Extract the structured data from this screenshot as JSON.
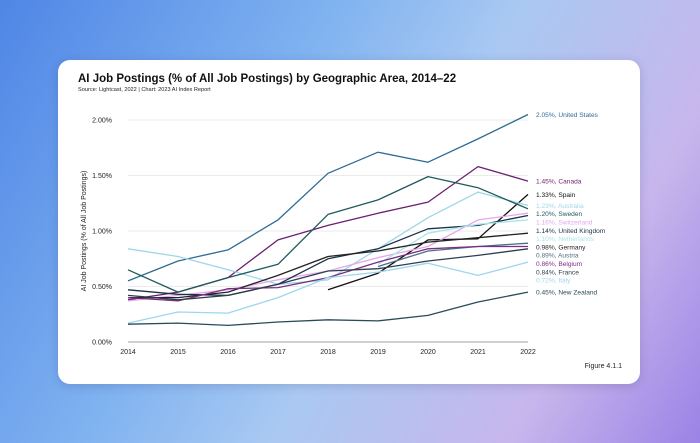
{
  "header": {
    "title": "AI Job Postings (% of All Job Postings) by Geographic Area, 2014–22",
    "subtitle": "Source: Lightcast, 2022 | Chart: 2023 AI Index Report",
    "figure": "Figure 4.1.1"
  },
  "chart_data": {
    "type": "line",
    "title": "AI Job Postings (% of All Job Postings) by Geographic Area, 2014–22",
    "ylabel": "AI Job Postings (% of All Job Postings)",
    "xlabel": "",
    "x": [
      2014,
      2015,
      2016,
      2017,
      2018,
      2019,
      2020,
      2021,
      2022
    ],
    "ylim": [
      0,
      2.0
    ],
    "yticks": [
      "0.00%",
      "0.50%",
      "1.00%",
      "1.50%",
      "2.00%"
    ],
    "grid": true,
    "series": [
      {
        "name": "United States",
        "label": "2.05%, United States",
        "color": "#2e6b96",
        "values": [
          0.55,
          0.73,
          0.83,
          1.1,
          1.52,
          1.71,
          1.62,
          1.83,
          2.05
        ]
      },
      {
        "name": "Canada",
        "label": "1.45%, Canada",
        "color": "#6b1f6e",
        "values": [
          0.38,
          0.45,
          0.58,
          0.92,
          1.05,
          1.16,
          1.26,
          1.58,
          1.45
        ]
      },
      {
        "name": "Spain",
        "label": "1.33%, Spain",
        "color": "#111111",
        "values": [
          null,
          null,
          null,
          null,
          0.47,
          0.62,
          0.92,
          0.93,
          1.33
        ]
      },
      {
        "name": "Australia",
        "label": "1.23%, Australia",
        "color": "#9fd6e6",
        "values": [
          0.84,
          0.77,
          0.65,
          0.52,
          0.56,
          0.84,
          1.12,
          1.35,
          1.23
        ]
      },
      {
        "name": "Sweden",
        "label": "1.20%, Sweden",
        "color": "#1f5a5e",
        "values": [
          0.65,
          0.45,
          0.58,
          0.7,
          1.15,
          1.28,
          1.49,
          1.39,
          1.2
        ]
      },
      {
        "name": "Switzerland",
        "label": "1.16%, Switzerland",
        "color": "#e6a6ee",
        "values": [
          0.37,
          0.42,
          0.47,
          0.56,
          0.64,
          0.76,
          0.86,
          1.1,
          1.16
        ]
      },
      {
        "name": "United Kingdom",
        "label": "1.14%, United Kingdom",
        "color": "#1b2f4a",
        "values": [
          0.47,
          0.43,
          0.42,
          0.52,
          0.75,
          0.84,
          1.02,
          1.05,
          1.14
        ]
      },
      {
        "name": "Netherlands",
        "label": "1.10%, Netherlands",
        "color": "#a8e6ea",
        "values": [
          null,
          null,
          null,
          null,
          null,
          0.7,
          0.98,
          1.06,
          1.1
        ]
      },
      {
        "name": "Germany",
        "label": "0.98%, Germany",
        "color": "#222222",
        "values": [
          0.4,
          0.4,
          0.45,
          0.6,
          0.77,
          0.82,
          0.9,
          0.94,
          0.98
        ]
      },
      {
        "name": "Austria",
        "label": "0.89%, Austria",
        "color": "#4d6f86",
        "values": [
          null,
          null,
          null,
          null,
          null,
          0.68,
          0.82,
          0.86,
          0.89
        ]
      },
      {
        "name": "Belgium",
        "label": "0.86%, Belgium",
        "color": "#7a2e82",
        "values": [
          0.4,
          0.37,
          0.48,
          0.49,
          0.58,
          0.72,
          0.84,
          0.86,
          0.86
        ]
      },
      {
        "name": "France",
        "label": "0.84%, France",
        "color": "#2c3e4e",
        "values": [
          0.42,
          0.38,
          0.42,
          0.52,
          0.64,
          0.66,
          0.73,
          0.78,
          0.84
        ]
      },
      {
        "name": "Italy",
        "label": "0.72%, Italy",
        "color": "#9ed6ee",
        "values": [
          0.17,
          0.27,
          0.26,
          0.4,
          0.58,
          0.63,
          0.71,
          0.6,
          0.72
        ]
      },
      {
        "name": "New Zealand",
        "label": "0.45%, New Zealand",
        "color": "#2b4a5a",
        "values": [
          0.16,
          0.17,
          0.15,
          0.18,
          0.2,
          0.19,
          0.24,
          0.36,
          0.45
        ]
      }
    ]
  }
}
